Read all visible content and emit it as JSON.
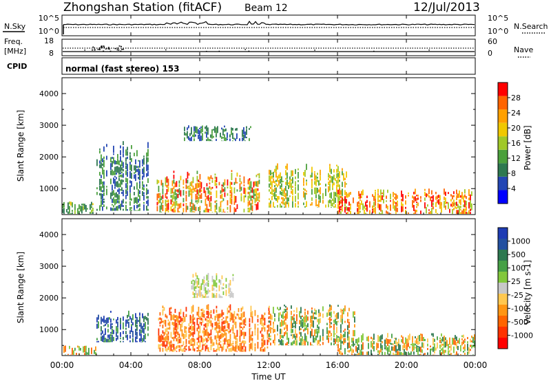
{
  "header": {
    "station": "Zhongshan Station (fitACF)",
    "beam": "Beam 12",
    "date": "12/Jul/2013"
  },
  "noise_panel": {
    "left_label": "N.Sky",
    "right_label": "N.Search",
    "left_ticks": [
      "10^5",
      "10^0"
    ],
    "right_ticks": [
      "10^5",
      "10^0"
    ]
  },
  "freq_panel": {
    "left_label_1": "Freq.",
    "left_label_2": "[MHz]",
    "right_label": "Nave",
    "left_ticks": [
      "18",
      "8"
    ],
    "right_ticks": [
      "60",
      "0"
    ]
  },
  "cpid_panel": {
    "label": "CPID",
    "text": "normal (fast stereo) 153"
  },
  "axes": {
    "ylabel": "Slant Range [km]",
    "xlabel": "Time UT",
    "xticks": [
      "00:00",
      "04:00",
      "08:00",
      "12:00",
      "16:00",
      "20:00",
      "00:00"
    ],
    "yticks": [
      "1000",
      "2000",
      "3000",
      "4000"
    ]
  },
  "power_bar": {
    "label": "Power [dB]",
    "ticks": [
      "4",
      "8",
      "12",
      "16",
      "20",
      "24",
      "28"
    ],
    "colors": [
      "#0000ff",
      "#2346b4",
      "#2d7850",
      "#4ba03c",
      "#a0c828",
      "#f0c800",
      "#ffa000",
      "#ff6400",
      "#ff0000"
    ]
  },
  "velocity_bar": {
    "label": "Velocity [m s-1]",
    "ticks": [
      "1000",
      "500",
      "100",
      "25",
      "-25",
      "-100",
      "-500",
      "-1000"
    ],
    "colors": [
      "#1e3cb4",
      "#2350a0",
      "#2d7850",
      "#46a046",
      "#82c83c",
      "#c8c8c8",
      "#ffc850",
      "#ff9614",
      "#ff6400",
      "#ff3200",
      "#ff0000"
    ]
  },
  "chart_data": [
    {
      "type": "line",
      "title": "Zhongshan Station (fitACF) Beam 12 12/Jul/2013",
      "series": [
        {
          "name": "N.Sky"
        },
        {
          "name": "N.Search"
        }
      ]
    },
    {
      "type": "line",
      "series": [
        {
          "name": "Freq."
        },
        {
          "name": "Nave"
        }
      ],
      "ylim_left": [
        8,
        18
      ],
      "ylim_right": [
        0,
        60
      ]
    },
    {
      "type": "heatmap",
      "quantity": "Power [dB]",
      "xlabel": "Time UT",
      "ylabel": "Slant Range [km]",
      "xlim": [
        "00:00",
        "00:00"
      ],
      "ylim": [
        180,
        4500
      ],
      "cbar_ticks": [
        4,
        8,
        12,
        16,
        20,
        24,
        28
      ],
      "regions": [
        {
          "t": [
            0.0,
            2.0
          ],
          "r": [
            200,
            600
          ],
          "level": "low-mid"
        },
        {
          "t": [
            2.0,
            5.0
          ],
          "r": [
            300,
            2500
          ],
          "level": "low"
        },
        {
          "t": [
            5.5,
            11.5
          ],
          "r": [
            250,
            1600
          ],
          "level": "high"
        },
        {
          "t": [
            7.0,
            11.0
          ],
          "r": [
            2500,
            3000
          ],
          "level": "low"
        },
        {
          "t": [
            12.0,
            16.5
          ],
          "r": [
            400,
            1800
          ],
          "level": "mid"
        },
        {
          "t": [
            16.0,
            24.0
          ],
          "r": [
            200,
            1000
          ],
          "level": "mid-high"
        }
      ]
    },
    {
      "type": "heatmap",
      "quantity": "Velocity [m s-1]",
      "xlabel": "Time UT",
      "ylabel": "Slant Range [km]",
      "xlim": [
        "00:00",
        "00:00"
      ],
      "ylim": [
        180,
        4500
      ],
      "cbar_ticks": [
        1000,
        500,
        100,
        25,
        -25,
        -100,
        -500,
        -1000
      ],
      "regions": [
        {
          "t": [
            0.0,
            2.0
          ],
          "r": [
            200,
            500
          ],
          "level": "slow"
        },
        {
          "t": [
            2.0,
            5.0
          ],
          "r": [
            600,
            1600
          ],
          "level": "positive"
        },
        {
          "t": [
            5.5,
            12.0
          ],
          "r": [
            300,
            1800
          ],
          "level": "negative"
        },
        {
          "t": [
            7.5,
            10.0
          ],
          "r": [
            2000,
            2800
          ],
          "level": "near zero"
        },
        {
          "t": [
            12.0,
            17.0
          ],
          "r": [
            500,
            1800
          ],
          "level": "mixed"
        },
        {
          "t": [
            16.0,
            24.0
          ],
          "r": [
            200,
            900
          ],
          "level": "mixed"
        }
      ]
    }
  ]
}
